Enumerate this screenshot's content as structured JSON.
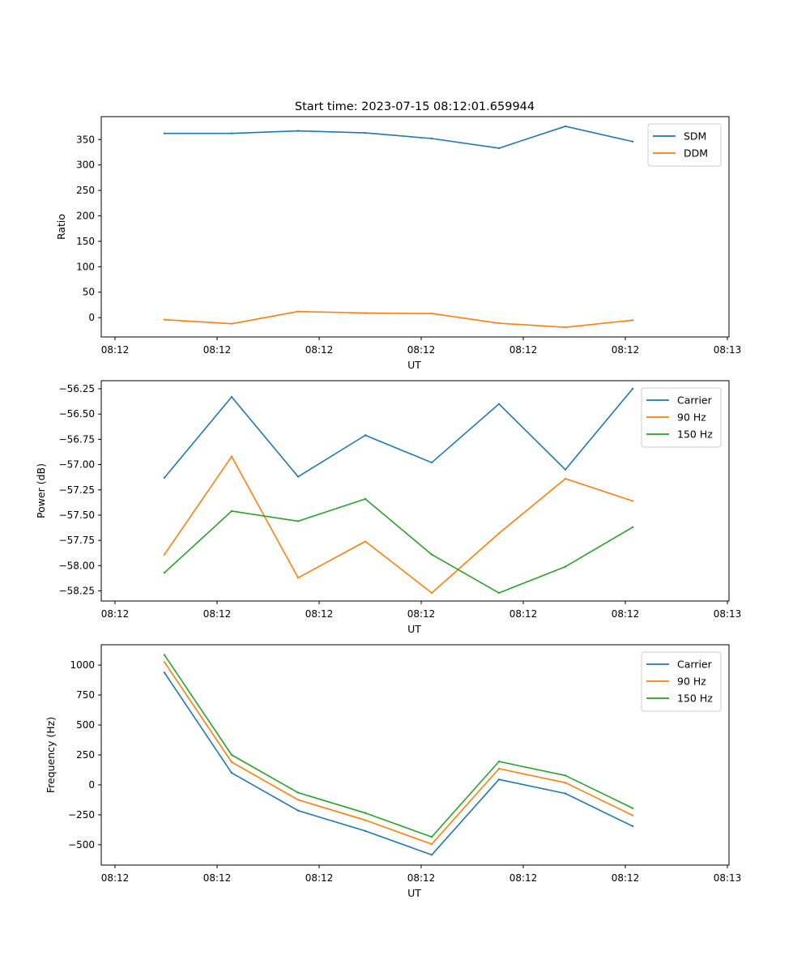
{
  "figure_title": "Start time: 2023-07-15 08:12:01.659944",
  "colors": {
    "blue": "#1f77b4",
    "orange": "#ff7f0e",
    "green": "#2ca02c"
  },
  "chart_data": [
    {
      "type": "line",
      "title": "Start time: 2023-07-15 08:12:01.659944",
      "xlabel": "UT",
      "ylabel": "Ratio",
      "x_ticks": [
        "08:12",
        "08:12",
        "08:12",
        "08:12",
        "08:12",
        "08:12",
        "08:13"
      ],
      "y_ticks": [
        "0",
        "50",
        "100",
        "150",
        "200",
        "250",
        "300",
        "350"
      ],
      "ylim": [
        -38,
        395
      ],
      "legend_position": "top-right",
      "series": [
        {
          "name": "SDM",
          "color": "#1f77b4",
          "values": [
            362,
            362,
            367,
            363,
            352,
            333,
            376,
            346
          ]
        },
        {
          "name": "DDM",
          "color": "#ff7f0e",
          "values": [
            -4,
            -12,
            12,
            9,
            8,
            -11,
            -19,
            -5
          ]
        }
      ]
    },
    {
      "type": "line",
      "title": "",
      "xlabel": "UT",
      "ylabel": "Power (dB)",
      "x_ticks": [
        "08:12",
        "08:12",
        "08:12",
        "08:12",
        "08:12",
        "08:12",
        "08:13"
      ],
      "y_ticks": [
        "−58.25",
        "−58.00",
        "−57.75",
        "−57.50",
        "−57.25",
        "−57.00",
        "−56.75",
        "−56.50",
        "−56.25"
      ],
      "ylim": [
        -58.35,
        -56.17
      ],
      "legend_position": "top-right",
      "series": [
        {
          "name": "Carrier",
          "color": "#1f77b4",
          "values": [
            -57.13,
            -56.33,
            -57.12,
            -56.71,
            -56.98,
            -56.4,
            -57.05,
            -56.25
          ]
        },
        {
          "name": "90 Hz",
          "color": "#ff7f0e",
          "values": [
            -57.89,
            -56.92,
            -58.12,
            -57.76,
            -58.27,
            -57.68,
            -57.14,
            -57.36
          ]
        },
        {
          "name": "150 Hz",
          "color": "#2ca02c",
          "values": [
            -58.07,
            -57.46,
            -57.56,
            -57.34,
            -57.89,
            -58.27,
            -58.01,
            -57.62
          ]
        }
      ]
    },
    {
      "type": "line",
      "title": "",
      "xlabel": "UT",
      "ylabel": "Frequency (Hz)",
      "x_ticks": [
        "08:12",
        "08:12",
        "08:12",
        "08:12",
        "08:12",
        "08:12",
        "08:13"
      ],
      "y_ticks": [
        "−500",
        "−250",
        "0",
        "250",
        "500",
        "750",
        "1000"
      ],
      "ylim": [
        -670,
        1170
      ],
      "legend_position": "top-right",
      "series": [
        {
          "name": "Carrier",
          "color": "#1f77b4",
          "values": [
            937,
            100,
            -215,
            -385,
            -585,
            45,
            -72,
            -345
          ]
        },
        {
          "name": "90 Hz",
          "color": "#ff7f0e",
          "values": [
            1025,
            190,
            -125,
            -295,
            -495,
            135,
            18,
            -255
          ]
        },
        {
          "name": "150 Hz",
          "color": "#2ca02c",
          "values": [
            1085,
            250,
            -65,
            -235,
            -435,
            195,
            78,
            -195
          ]
        }
      ]
    }
  ]
}
